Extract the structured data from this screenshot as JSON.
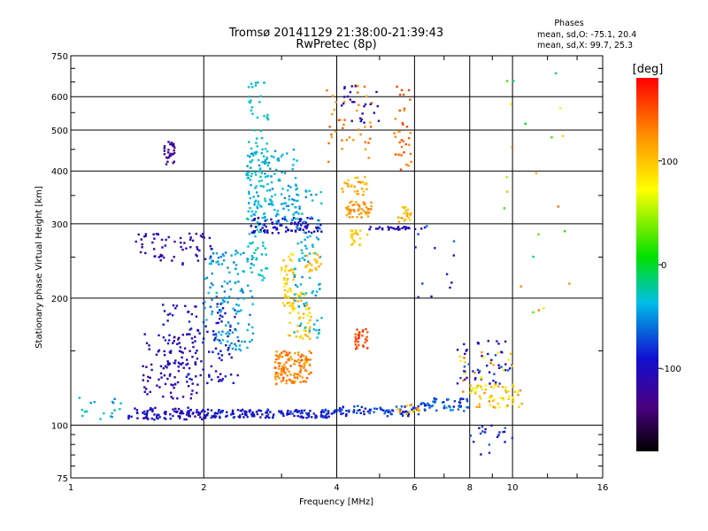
{
  "chart_data": {
    "type": "scatter",
    "title": "Tromsø 20141129 21:38:00-21:39:43",
    "subtitle": "RwPretec (8p)",
    "xlabel": "Frequency [MHz]",
    "ylabel": "Stationary phase Virtual Height [km]",
    "x_scale": "log",
    "y_scale": "log",
    "xlim": [
      1,
      16
    ],
    "ylim": [
      75,
      750
    ],
    "x_ticks": [
      1,
      2,
      4,
      6,
      8,
      10,
      16
    ],
    "y_ticks": [
      75,
      100,
      200,
      300,
      400,
      500,
      600,
      750
    ],
    "x_tick_labels": [
      "1",
      "2",
      "4",
      "6",
      "8",
      "10",
      "16"
    ],
    "y_tick_labels": [
      "75",
      "100",
      "200",
      "300",
      "400",
      "500",
      "600",
      "750"
    ],
    "grid": true,
    "info_box": {
      "title": "Phases",
      "line1": "mean, sd,O: -75.1, 20.4",
      "line2": "mean, sd,X:  99.7, 25.3"
    },
    "colorbar": {
      "unit": "[deg]",
      "range": [
        -180,
        180
      ],
      "ticks": [
        100,
        0,
        -100
      ],
      "tick_labels": [
        "100",
        "0",
        "-100"
      ]
    },
    "clusters": [
      {
        "x": [
          1.0,
          1.3
        ],
        "y": [
          102,
          118
        ],
        "phase": [
          -60,
          -20
        ],
        "n": 18
      },
      {
        "x": [
          1.35,
          2.0
        ],
        "y": [
          103,
          110
        ],
        "phase": [
          -120,
          -85
        ],
        "n": 90
      },
      {
        "x": [
          2.0,
          4.0
        ],
        "y": [
          104,
          109
        ],
        "phase": [
          -110,
          -70
        ],
        "n": 160
      },
      {
        "x": [
          4.0,
          6.2
        ],
        "y": [
          105,
          111
        ],
        "phase": [
          -100,
          -60
        ],
        "n": 70
      },
      {
        "x": [
          5.5,
          6.2
        ],
        "y": [
          106,
          112
        ],
        "phase": [
          100,
          140
        ],
        "n": 15
      },
      {
        "x": [
          6.2,
          8.0
        ],
        "y": [
          108,
          116
        ],
        "phase": [
          -90,
          -50
        ],
        "n": 50
      },
      {
        "x": [
          8.0,
          10.5
        ],
        "y": [
          110,
          125
        ],
        "phase": [
          60,
          130
        ],
        "n": 60
      },
      {
        "x": [
          8.0,
          10.0
        ],
        "y": [
          85,
          100
        ],
        "phase": [
          -120,
          -60
        ],
        "n": 20
      },
      {
        "x": [
          7.5,
          10.0
        ],
        "y": [
          125,
          160
        ],
        "phase": [
          -130,
          -60
        ],
        "n": 50
      },
      {
        "x": [
          7.5,
          10.0
        ],
        "y": [
          120,
          150
        ],
        "phase": [
          60,
          140
        ],
        "n": 25
      },
      {
        "x": [
          1.45,
          1.95
        ],
        "y": [
          115,
          165
        ],
        "phase": [
          -130,
          -95
        ],
        "n": 90
      },
      {
        "x": [
          1.6,
          2.4
        ],
        "y": [
          125,
          195
        ],
        "phase": [
          -115,
          -80
        ],
        "n": 120
      },
      {
        "x": [
          1.4,
          2.1
        ],
        "y": [
          240,
          285
        ],
        "phase": [
          -130,
          -90
        ],
        "n": 65
      },
      {
        "x": [
          1.62,
          1.72
        ],
        "y": [
          410,
          470
        ],
        "phase": [
          -140,
          -110
        ],
        "n": 30
      },
      {
        "x": [
          2.0,
          2.6
        ],
        "y": [
          150,
          260
        ],
        "phase": [
          -60,
          -30
        ],
        "n": 130
      },
      {
        "x": [
          2.5,
          3.3
        ],
        "y": [
          300,
          450
        ],
        "phase": [
          -55,
          -30
        ],
        "n": 130
      },
      {
        "x": [
          2.5,
          2.8
        ],
        "y": [
          220,
          650
        ],
        "phase": [
          -40,
          -20
        ],
        "n": 110
      },
      {
        "x": [
          2.55,
          3.7
        ],
        "y": [
          285,
          310
        ],
        "phase": [
          -115,
          -85
        ],
        "n": 90
      },
      {
        "x": [
          3.0,
          3.2
        ],
        "y": [
          190,
          260
        ],
        "phase": [
          80,
          110
        ],
        "n": 45
      },
      {
        "x": [
          2.9,
          3.5
        ],
        "y": [
          125,
          150
        ],
        "phase": [
          110,
          150
        ],
        "n": 130
      },
      {
        "x": [
          3.1,
          3.5
        ],
        "y": [
          160,
          210
        ],
        "phase": [
          80,
          115
        ],
        "n": 55
      },
      {
        "x": [
          3.2,
          3.7
        ],
        "y": [
          160,
          370
        ],
        "phase": [
          -55,
          -25
        ],
        "n": 90
      },
      {
        "x": [
          3.4,
          3.7
        ],
        "y": [
          230,
          260
        ],
        "phase": [
          90,
          115
        ],
        "n": 20
      },
      {
        "x": [
          4.2,
          4.8
        ],
        "y": [
          310,
          340
        ],
        "phase": [
          110,
          135
        ],
        "n": 50
      },
      {
        "x": [
          4.1,
          4.7
        ],
        "y": [
          350,
          390
        ],
        "phase": [
          95,
          125
        ],
        "n": 30
      },
      {
        "x": [
          4.4,
          4.7
        ],
        "y": [
          150,
          170
        ],
        "phase": [
          140,
          165
        ],
        "n": 30
      },
      {
        "x": [
          3.8,
          4.8
        ],
        "y": [
          420,
          640
        ],
        "phase": [
          110,
          150
        ],
        "n": 40
      },
      {
        "x": [
          4.1,
          5.0
        ],
        "y": [
          520,
          640
        ],
        "phase": [
          -130,
          -90
        ],
        "n": 25
      },
      {
        "x": [
          4.3,
          4.7
        ],
        "y": [
          265,
          290
        ],
        "phase": [
          90,
          110
        ],
        "n": 20
      },
      {
        "x": [
          5.5,
          5.9
        ],
        "y": [
          300,
          330
        ],
        "phase": [
          90,
          120
        ],
        "n": 20
      },
      {
        "x": [
          5.4,
          5.9
        ],
        "y": [
          400,
          640
        ],
        "phase": [
          120,
          160
        ],
        "n": 35
      },
      {
        "x": [
          4.6,
          6.4
        ],
        "y": [
          290,
          295
        ],
        "phase": [
          -120,
          -90
        ],
        "n": 30
      },
      {
        "x": [
          6.0,
          7.5
        ],
        "y": [
          180,
          300
        ],
        "phase": [
          -120,
          -60
        ],
        "n": 12
      },
      {
        "x": [
          9.5,
          13.5
        ],
        "y": [
          180,
          690
        ],
        "phase": [
          -30,
          150
        ],
        "n": 22
      }
    ]
  }
}
